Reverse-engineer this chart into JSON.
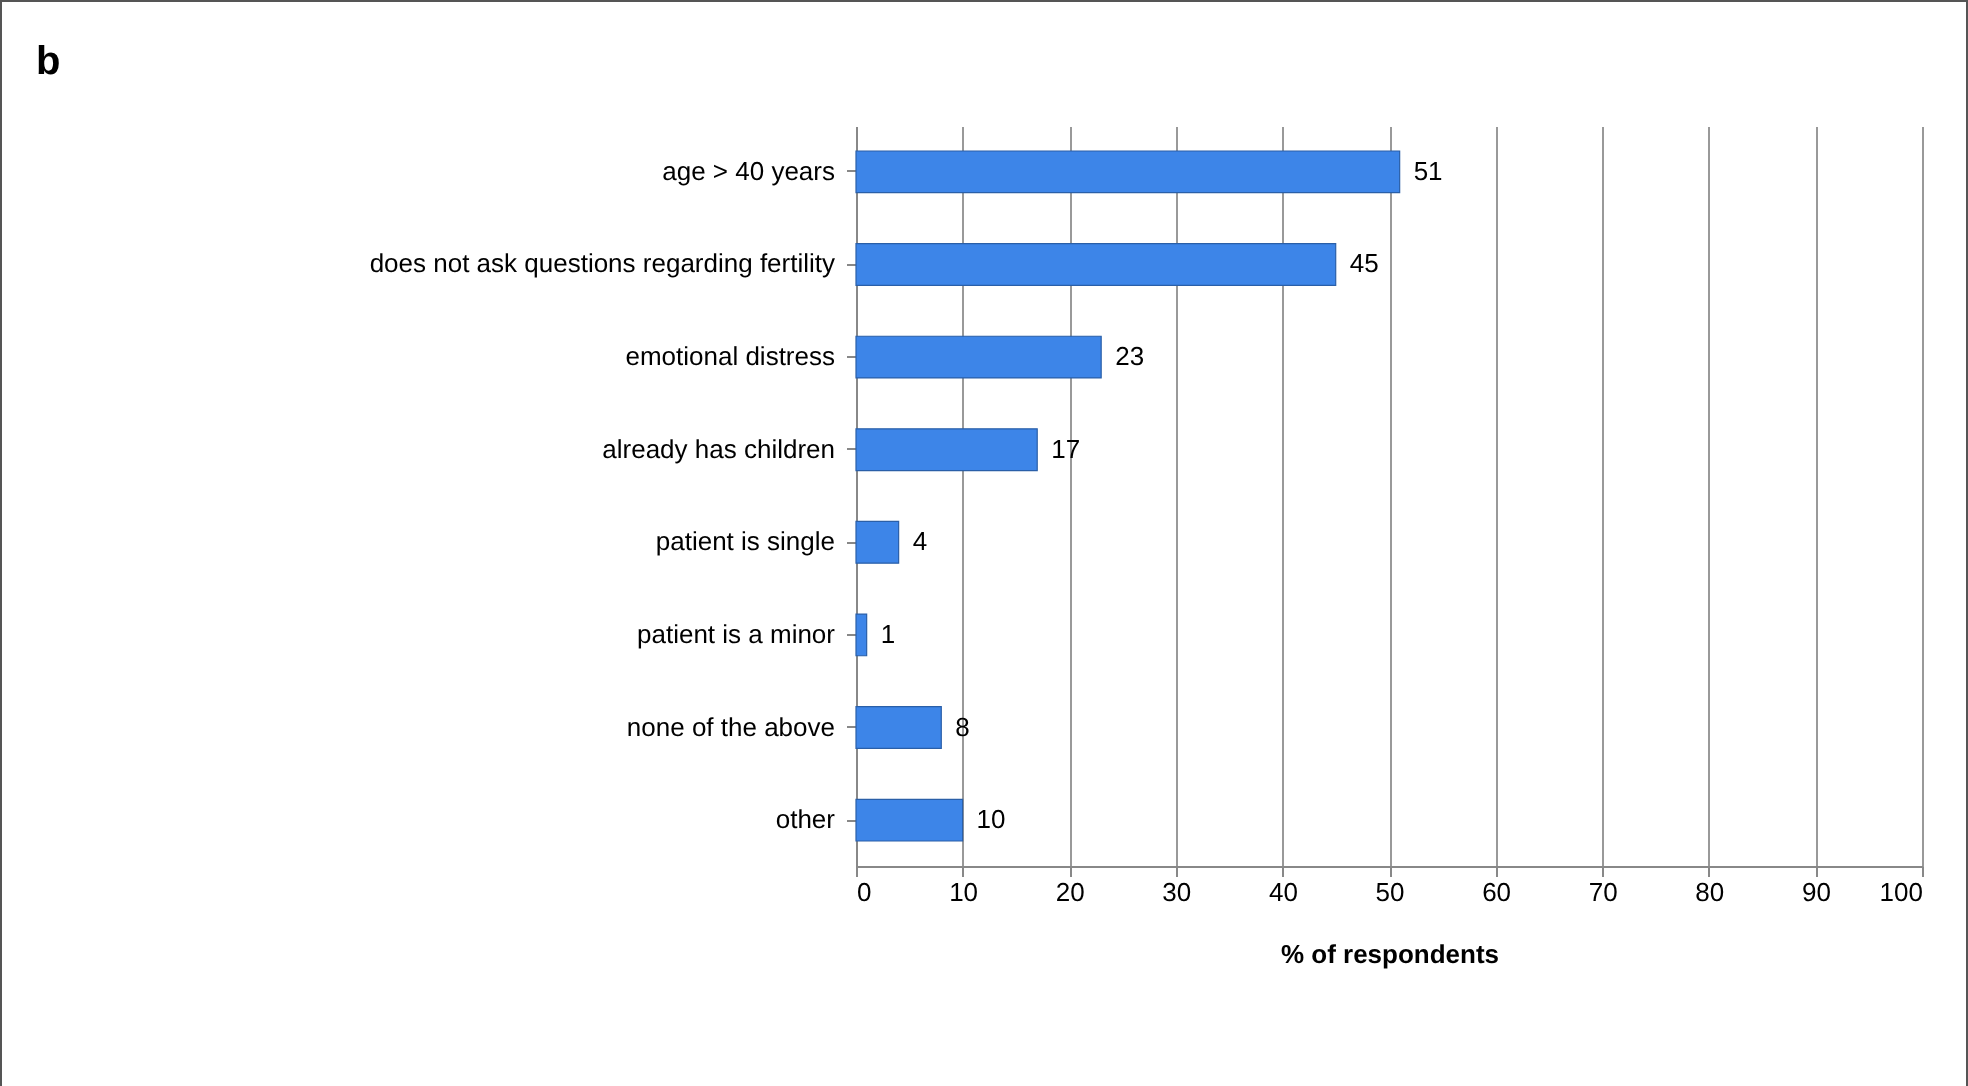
{
  "chart_data": {
    "type": "bar",
    "orientation": "horizontal",
    "title": "b",
    "xlabel": "% of respondents",
    "categories": [
      "age > 40 years",
      "does not ask questions regarding fertility",
      "emotional distress",
      "already has children",
      "patient is single",
      "patient is a minor",
      "none of the above",
      "other"
    ],
    "values": [
      51,
      45,
      23,
      17,
      4,
      1,
      8,
      10
    ],
    "color": "#3d85e8",
    "xlim": [
      0,
      100
    ],
    "xticks": [
      0,
      10,
      20,
      30,
      40,
      50,
      60,
      70,
      80,
      90,
      100
    ],
    "grid": "x",
    "data_labels": true
  }
}
